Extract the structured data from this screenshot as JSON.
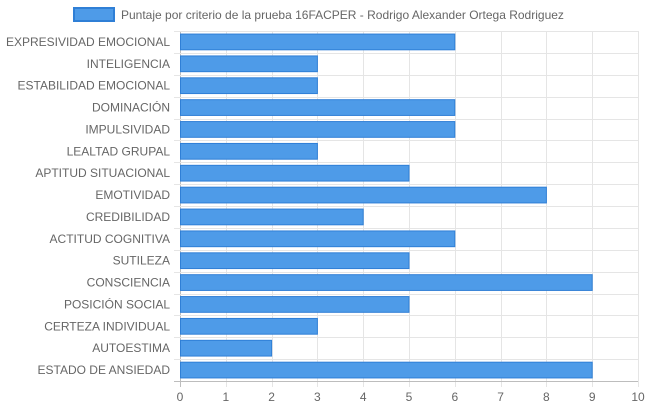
{
  "chart_data": {
    "type": "bar",
    "orientation": "horizontal",
    "title": "",
    "xlabel": "",
    "ylabel": "",
    "xlim": [
      0,
      10
    ],
    "x_ticks": [
      "0",
      "1",
      "2",
      "3",
      "4",
      "5",
      "6",
      "7",
      "8",
      "9",
      "10"
    ],
    "grid": true,
    "legend_position": "top",
    "categories": [
      "EXPRESIVIDAD EMOCIONAL",
      "INTELIGENCIA",
      "ESTABILIDAD EMOCIONAL",
      "DOMINACIÓN",
      "IMPULSIVIDAD",
      "LEALTAD GRUPAL",
      "APTITUD SITUACIONAL",
      "EMOTIVIDAD",
      "CREDIBILIDAD",
      "ACTITUD COGNITIVA",
      "SUTILEZA",
      "CONSCIENCIA",
      "POSICIÓN SOCIAL",
      "CERTEZA INDIVIDUAL",
      "AUTOESTIMA",
      "ESTADO DE ANSIEDAD"
    ],
    "series": [
      {
        "name": "Puntaje por criterio de la prueba 16FACPER - Rodrigo Alexander Ortega Rodriguez",
        "values": [
          6,
          3,
          3,
          6,
          6,
          3,
          5,
          8,
          4,
          6,
          5,
          9,
          5,
          3,
          2,
          9
        ],
        "color": "#4e9be8",
        "border_color": "#2f7fd6"
      }
    ]
  },
  "colors": {
    "grid": "#e5e5e5",
    "axis": "#bdbdbd",
    "text": "#666666"
  }
}
